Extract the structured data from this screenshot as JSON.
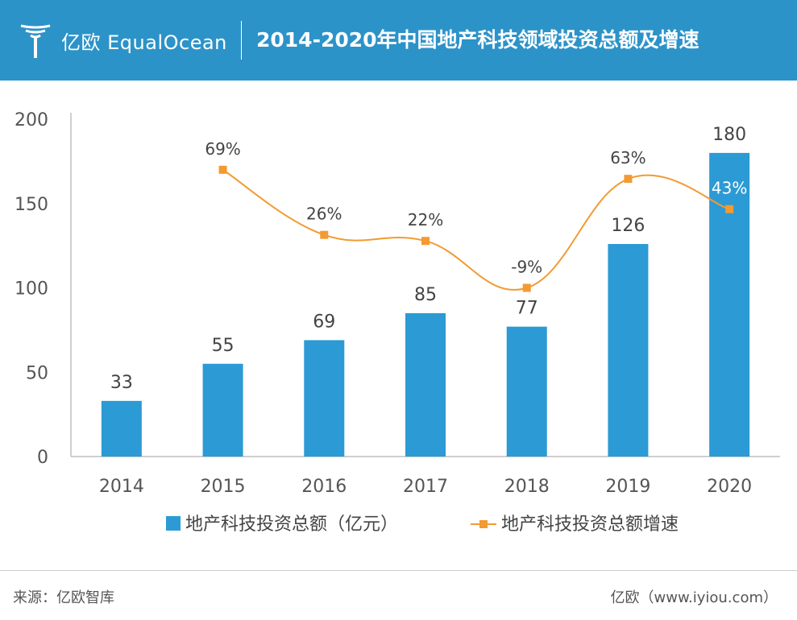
{
  "header": {
    "brand_text": "亿欧 EqualOcean",
    "title": "2014-2020年中国地产科技领域投资总额及增速",
    "color": "#2c93c8"
  },
  "chart_data": {
    "type": "bar",
    "title": "2014-2020年中国地产科技领域投资总额及增速",
    "categories": [
      "2014",
      "2015",
      "2016",
      "2017",
      "2018",
      "2019",
      "2020"
    ],
    "ylim": [
      0,
      200
    ],
    "yticks": [
      "0",
      "50",
      "100",
      "150",
      "200"
    ],
    "series": [
      {
        "name": "地产科技投资总额（亿元）",
        "type": "bar",
        "color": "#2c9ad4",
        "values": [
          33,
          55,
          69,
          85,
          77,
          126,
          180
        ],
        "labels": [
          "33",
          "55",
          "69",
          "85",
          "77",
          "126",
          "180"
        ]
      },
      {
        "name": "地产科技投资总额增速",
        "type": "line",
        "color": "#f39a32",
        "values": [
          null,
          69,
          26,
          22,
          -9,
          63,
          43
        ],
        "labels": [
          "",
          "69%",
          "26%",
          "22%",
          "-9%",
          "63%",
          "43%"
        ]
      }
    ],
    "legend": "bottom",
    "grid": false
  },
  "footer": {
    "source": "来源：亿欧智库",
    "site": "亿欧（www.iyiou.com）"
  }
}
